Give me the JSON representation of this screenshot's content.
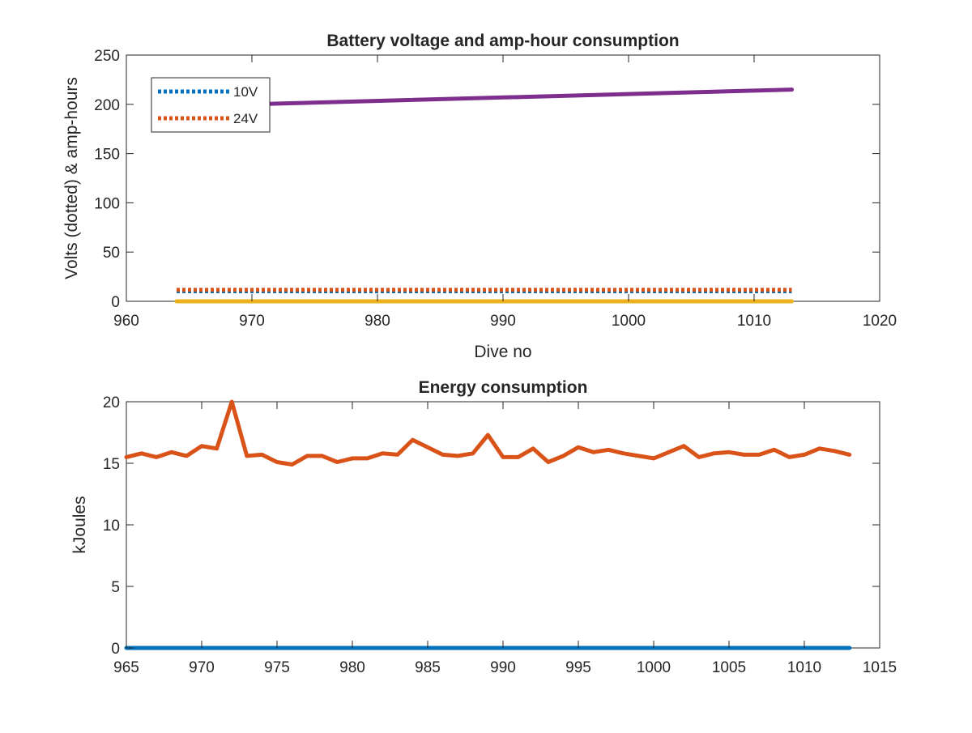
{
  "chart_data": [
    {
      "type": "line",
      "title": "Battery voltage and amp-hour consumption",
      "xlabel": "Dive no",
      "ylabel": "Volts (dotted) & amp-hours",
      "xlim": [
        960,
        1020
      ],
      "ylim": [
        0,
        250
      ],
      "xticks": [
        960,
        970,
        980,
        990,
        1000,
        1010,
        1020
      ],
      "yticks": [
        0,
        50,
        100,
        150,
        200,
        250
      ],
      "legend": {
        "placement": "top-left",
        "entries": [
          "10V",
          "24V"
        ]
      },
      "grid": false,
      "series": [
        {
          "name": "10V",
          "style": "dotted",
          "color": "#0072BD",
          "x": [
            964,
            1013
          ],
          "y": [
            10.2,
            10.2
          ]
        },
        {
          "name": "24V",
          "style": "dotted",
          "color": "#D95319",
          "x": [
            964,
            1013
          ],
          "y": [
            11.6,
            11.6
          ]
        },
        {
          "style": "solid",
          "color": "#EDB120",
          "x": [
            964,
            1013
          ],
          "y": [
            0,
            0
          ]
        },
        {
          "style": "solid",
          "color": "#7E2F8E",
          "x": [
            970,
            1013
          ],
          "y": [
            200,
            215
          ]
        }
      ]
    },
    {
      "type": "line",
      "title": "Energy consumption",
      "xlabel": "",
      "ylabel": "kJoules",
      "xlim": [
        965,
        1015
      ],
      "ylim": [
        0,
        20
      ],
      "xticks": [
        965,
        970,
        975,
        980,
        985,
        990,
        995,
        1000,
        1005,
        1010,
        1015
      ],
      "yticks": [
        0,
        5,
        10,
        15,
        20
      ],
      "grid": false,
      "series": [
        {
          "style": "solid",
          "color": "#0072BD",
          "x": [
            965,
            1013
          ],
          "y": [
            0,
            0
          ]
        },
        {
          "style": "solid",
          "color": "#D95319",
          "x": [
            965,
            966,
            967,
            968,
            969,
            970,
            971,
            972,
            973,
            974,
            975,
            976,
            977,
            978,
            979,
            980,
            981,
            982,
            983,
            984,
            985,
            986,
            987,
            988,
            989,
            990,
            991,
            992,
            993,
            994,
            995,
            996,
            997,
            998,
            999,
            1000,
            1001,
            1002,
            1003,
            1004,
            1005,
            1006,
            1007,
            1008,
            1009,
            1010,
            1011,
            1012,
            1013
          ],
          "y": [
            15.5,
            15.8,
            15.5,
            15.9,
            15.6,
            16.4,
            16.2,
            20.0,
            15.6,
            15.7,
            15.1,
            14.9,
            15.6,
            15.6,
            15.1,
            15.4,
            15.4,
            15.8,
            15.7,
            16.9,
            16.3,
            15.7,
            15.6,
            15.8,
            17.3,
            15.5,
            15.5,
            16.2,
            15.1,
            15.6,
            16.3,
            15.9,
            16.1,
            15.8,
            15.6,
            15.4,
            15.9,
            16.4,
            15.5,
            15.8,
            15.9,
            15.7,
            15.7,
            16.1,
            15.5,
            15.7,
            16.2,
            16.0,
            15.7
          ]
        }
      ]
    }
  ]
}
